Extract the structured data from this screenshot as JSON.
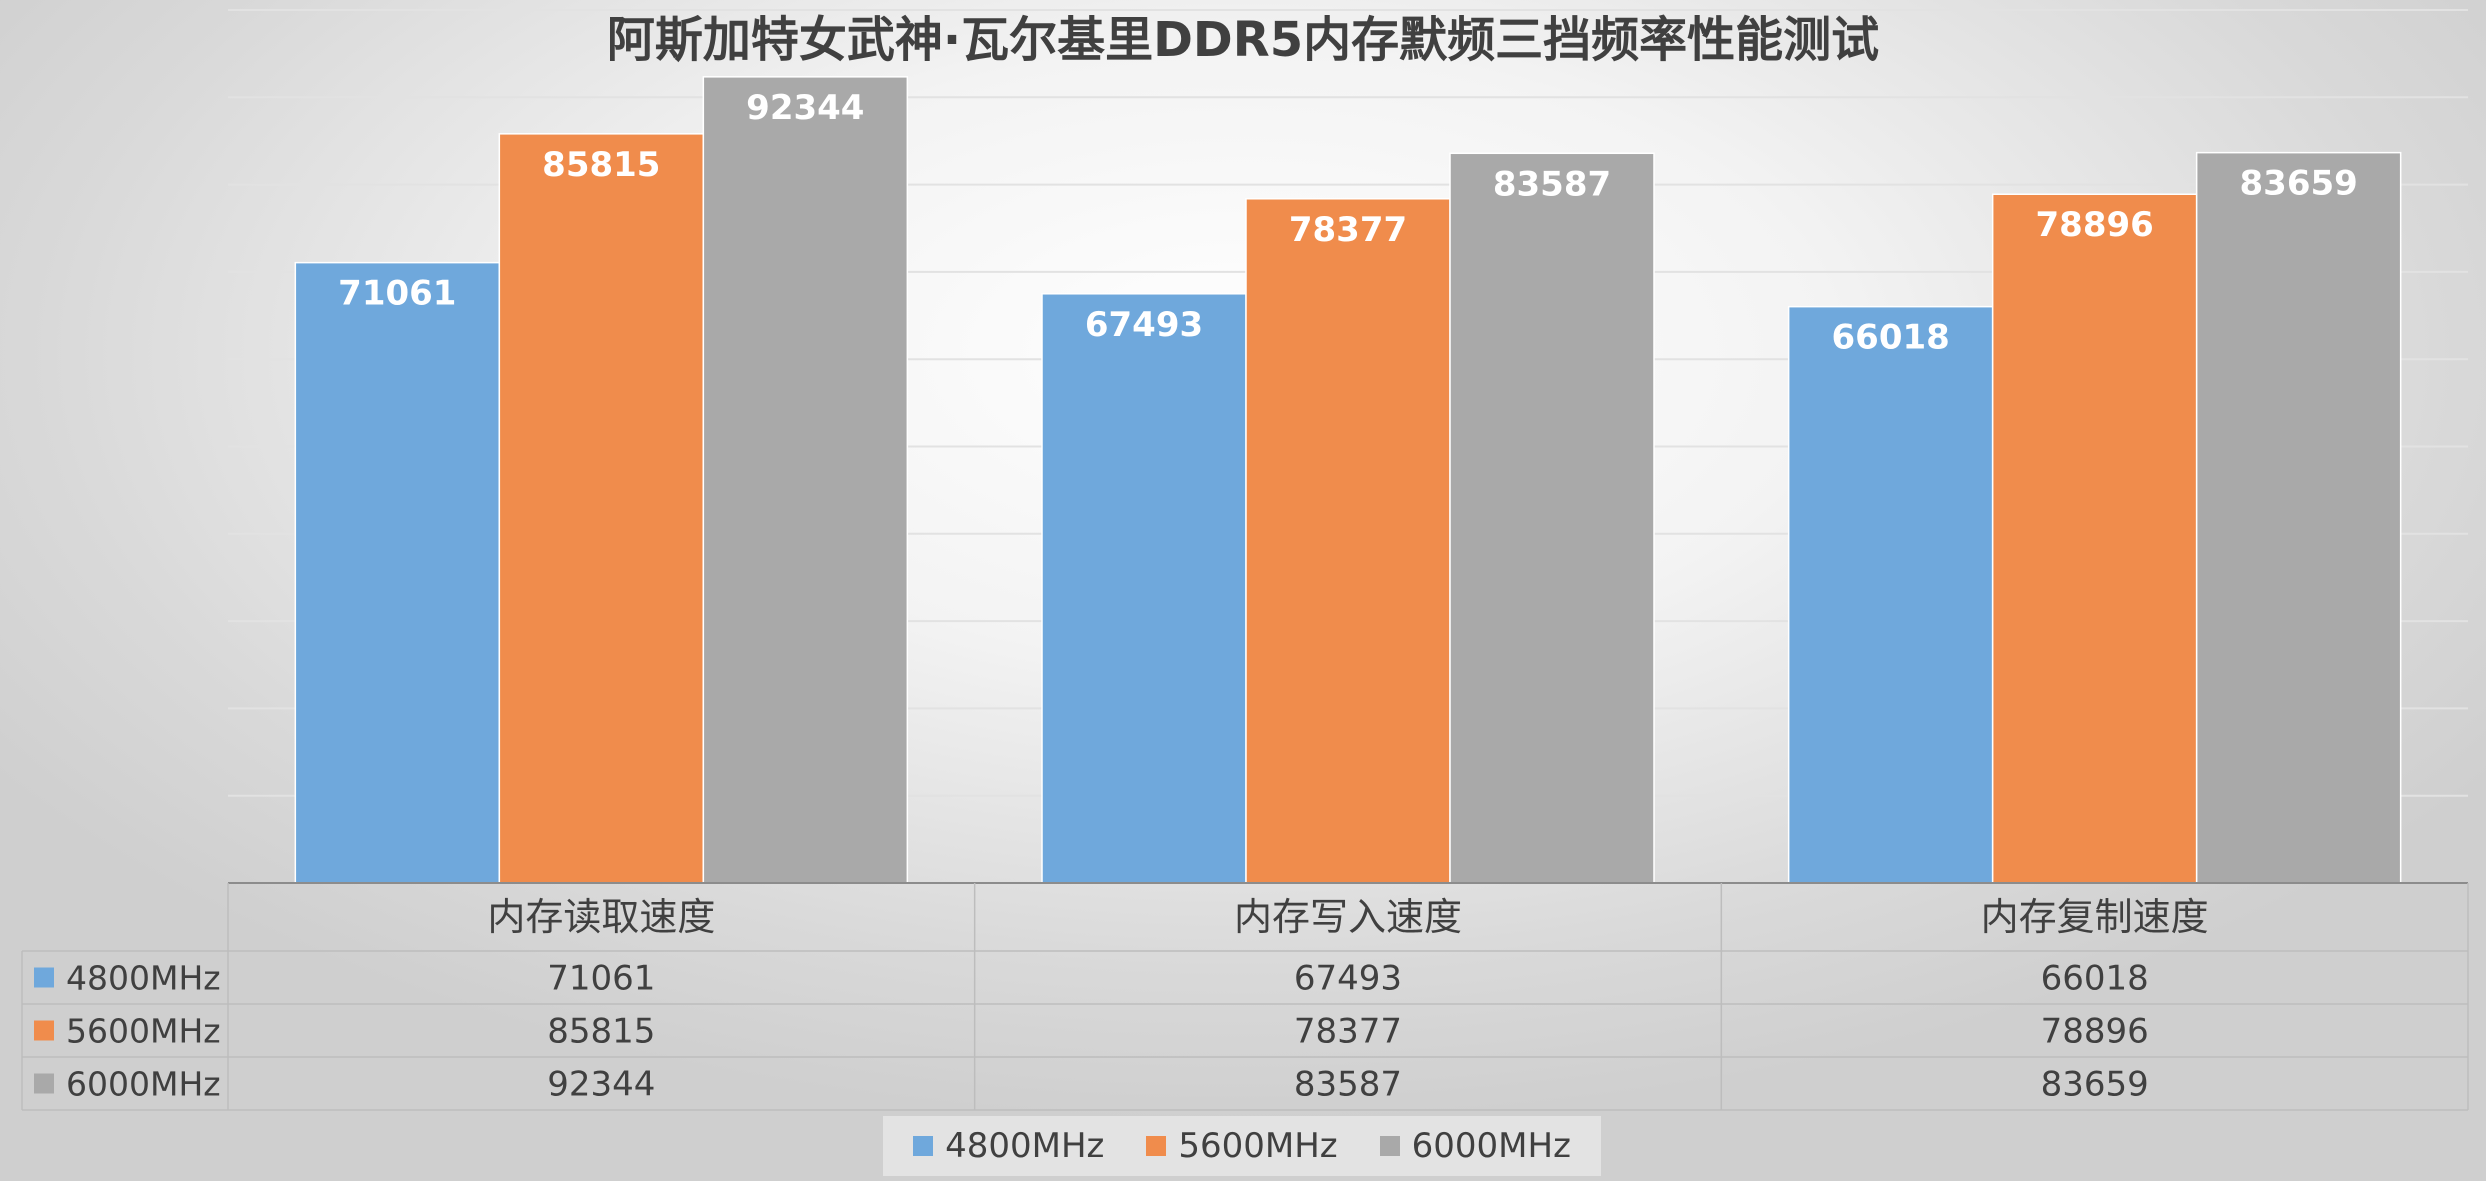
{
  "chart_data": {
    "type": "bar",
    "title": "阿斯加特女武神·瓦尔基里DDR5内存默频三挡频率性能测试",
    "categories": [
      "内存读取速度",
      "内存写入速度",
      "内存复制速度"
    ],
    "series": [
      {
        "name": "4800MHz",
        "color": "#6fa8dc",
        "values": [
          71061,
          67493,
          66018
        ]
      },
      {
        "name": "5600MHz",
        "color": "#f08c4c",
        "values": [
          85815,
          78377,
          78896
        ]
      },
      {
        "name": "6000MHz",
        "color": "#a9a9a9",
        "values": [
          92344,
          83587,
          83659
        ]
      }
    ],
    "ylim": [
      0,
      100000
    ],
    "grid": true,
    "legend": "bottom",
    "data_table": true
  }
}
